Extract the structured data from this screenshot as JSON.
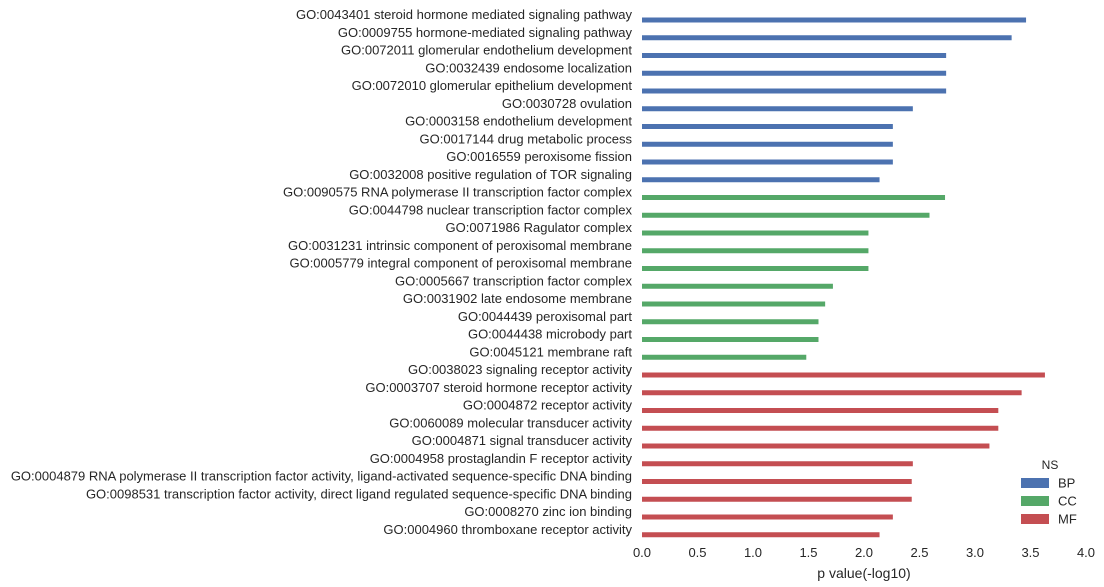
{
  "chart_data": {
    "type": "bar",
    "orientation": "horizontal",
    "title": "",
    "xlabel": "p value(-log10)",
    "ylabel": "",
    "xlim": [
      0,
      4.0
    ],
    "xticks": [
      "0.0",
      "0.5",
      "1.0",
      "1.5",
      "2.0",
      "2.5",
      "3.0",
      "3.5",
      "4.0"
    ],
    "grid": false,
    "legend": {
      "title": "NS",
      "placement": "bottom-right",
      "entries": [
        {
          "label": "BP",
          "color": "#4c72b0"
        },
        {
          "label": "CC",
          "color": "#55a868"
        },
        {
          "label": "MF",
          "color": "#c44e52"
        }
      ]
    },
    "categories": [
      "GO:0043401 steroid hormone mediated signaling pathway",
      "GO:0009755 hormone-mediated signaling pathway",
      "GO:0072011 glomerular endothelium development",
      "GO:0032439 endosome localization",
      "GO:0072010 glomerular epithelium development",
      "GO:0030728 ovulation",
      "GO:0003158 endothelium development",
      "GO:0017144 drug metabolic process",
      "GO:0016559 peroxisome fission",
      "GO:0032008 positive regulation of TOR signaling",
      "GO:0090575 RNA polymerase II transcription factor complex",
      "GO:0044798 nuclear transcription factor complex",
      "GO:0071986 Ragulator complex",
      "GO:0031231 intrinsic component of peroxisomal membrane",
      "GO:0005779 integral component of peroxisomal membrane",
      "GO:0005667 transcription factor complex",
      "GO:0031902 late endosome membrane",
      "GO:0044439 peroxisomal part",
      "GO:0044438 microbody part",
      "GO:0045121 membrane raft",
      "GO:0038023 signaling receptor activity",
      "GO:0003707 steroid hormone receptor activity",
      "GO:0004872 receptor activity",
      "GO:0060089 molecular transducer activity",
      "GO:0004871 signal transducer activity",
      "GO:0004958 prostaglandin F receptor activity",
      "GO:0004879 RNA polymerase II transcription factor activity, ligand-activated sequence-specific DNA binding",
      "GO:0098531 transcription factor activity, direct ligand regulated sequence-specific DNA binding",
      "GO:0008270 zinc ion binding",
      "GO:0004960 thromboxane receptor activity"
    ],
    "series": [
      {
        "name": "BP",
        "color": "#4c72b0",
        "values": [
          3.46,
          3.33,
          2.74,
          2.74,
          2.74,
          2.44,
          2.26,
          2.26,
          2.26,
          2.14,
          null,
          null,
          null,
          null,
          null,
          null,
          null,
          null,
          null,
          null,
          null,
          null,
          null,
          null,
          null,
          null,
          null,
          null,
          null,
          null
        ]
      },
      {
        "name": "CC",
        "color": "#55a868",
        "values": [
          null,
          null,
          null,
          null,
          null,
          null,
          null,
          null,
          null,
          null,
          2.73,
          2.59,
          2.04,
          2.04,
          2.04,
          1.72,
          1.65,
          1.59,
          1.59,
          1.48,
          null,
          null,
          null,
          null,
          null,
          null,
          null,
          null,
          null,
          null
        ]
      },
      {
        "name": "MF",
        "color": "#c44e52",
        "values": [
          null,
          null,
          null,
          null,
          null,
          null,
          null,
          null,
          null,
          null,
          null,
          null,
          null,
          null,
          null,
          null,
          null,
          null,
          null,
          null,
          3.63,
          3.42,
          3.21,
          3.21,
          3.13,
          2.44,
          2.43,
          2.43,
          2.26,
          2.14
        ]
      }
    ]
  }
}
